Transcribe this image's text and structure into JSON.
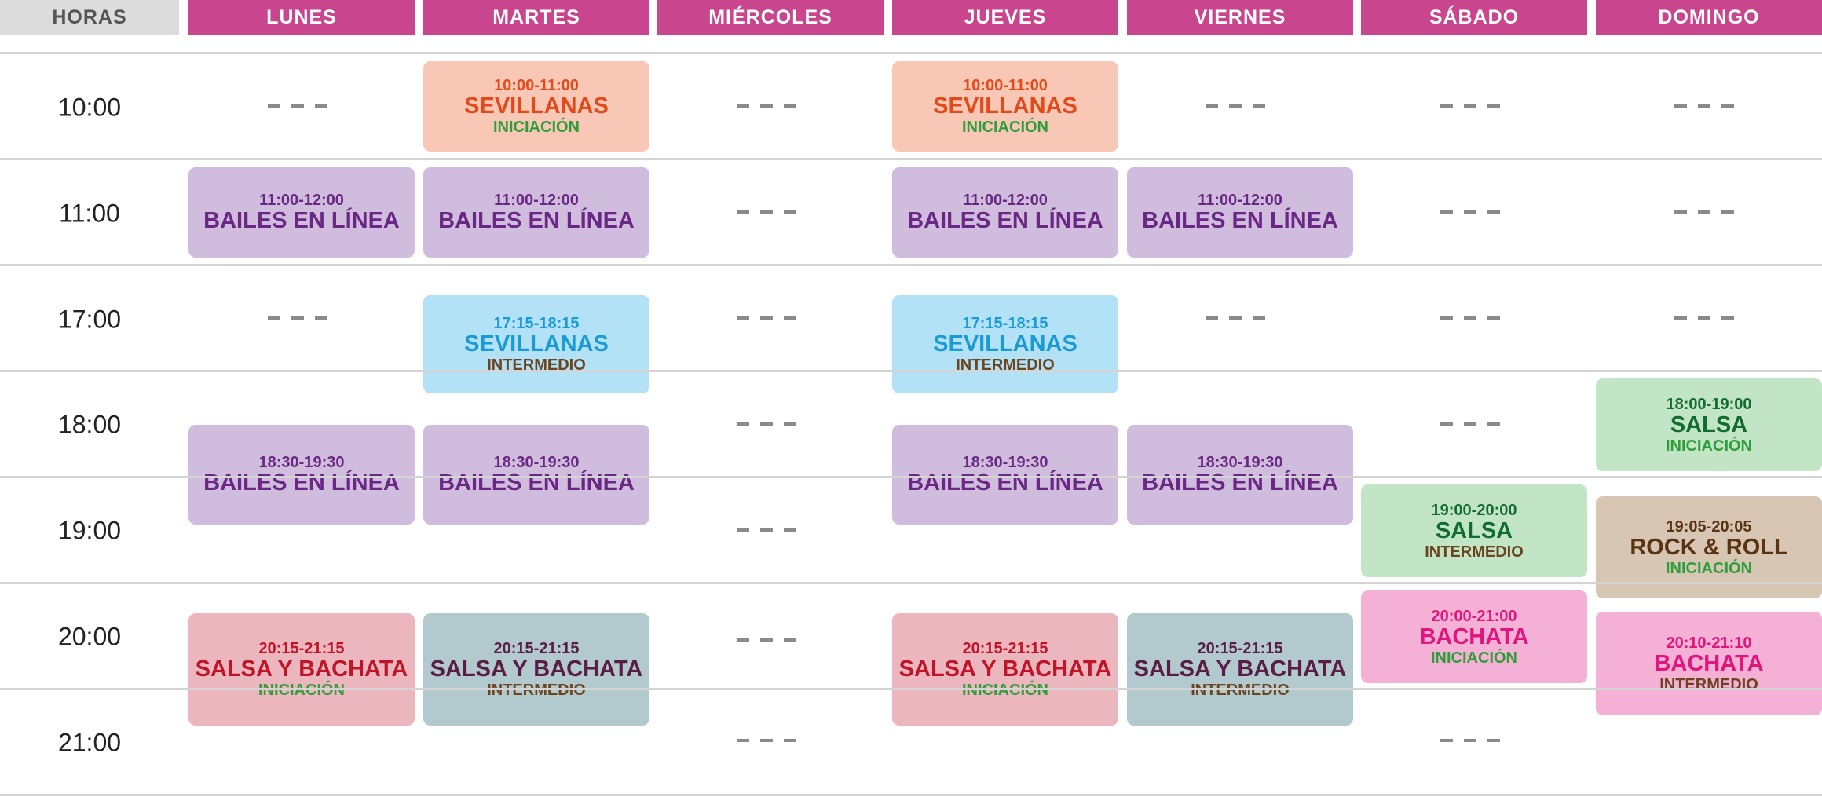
{
  "header": {
    "hours_label": "HORAS",
    "days": [
      "LUNES",
      "MARTES",
      "MIÉRCOLES",
      "JUEVES",
      "VIERNES",
      "SÁBADO",
      "DOMINGO"
    ]
  },
  "hours": [
    "10:00",
    "11:00",
    "17:00",
    "18:00",
    "19:00",
    "20:00",
    "21:00"
  ],
  "colors": {
    "header_day_bg": "#c9468f",
    "header_hours_bg": "#dcdcdc",
    "peach": "#f8c7b6",
    "lavender": "#d0bcdc",
    "sky": "#b3e1f6",
    "mint": "#c2e5c6",
    "rose": "#ebb6bd",
    "slate": "#b2c9cd",
    "pink": "#f5b1d5",
    "tan": "#d8c6b5"
  },
  "empty_slot_text": "– – –",
  "classes": [
    {
      "time": "10:00-11:00",
      "dance": "SEVILLANAS",
      "level": "INICIACIÓN"
    },
    {
      "time": "10:00-11:00",
      "dance": "SEVILLANAS",
      "level": "INICIACIÓN"
    },
    {
      "time": "11:00-12:00",
      "dance": "BAILES EN LÍNEA",
      "level": ""
    },
    {
      "time": "11:00-12:00",
      "dance": "BAILES EN LÍNEA",
      "level": ""
    },
    {
      "time": "11:00-12:00",
      "dance": "BAILES EN LÍNEA",
      "level": ""
    },
    {
      "time": "11:00-12:00",
      "dance": "BAILES EN LÍNEA",
      "level": ""
    },
    {
      "time": "17:15-18:15",
      "dance": "SEVILLANAS",
      "level": "INTERMEDIO"
    },
    {
      "time": "17:15-18:15",
      "dance": "SEVILLANAS",
      "level": "INTERMEDIO"
    },
    {
      "time": "18:30-19:30",
      "dance": "BAILES EN LÍNEA",
      "level": ""
    },
    {
      "time": "18:30-19:30",
      "dance": "BAILES EN LÍNEA",
      "level": ""
    },
    {
      "time": "18:30-19:30",
      "dance": "BAILES EN LÍNEA",
      "level": ""
    },
    {
      "time": "18:30-19:30",
      "dance": "BAILES EN LÍNEA",
      "level": ""
    },
    {
      "time": "18:00-19:00",
      "dance": "SALSA",
      "level": "INICIACIÓN"
    },
    {
      "time": "19:00-20:00",
      "dance": "SALSA",
      "level": "INTERMEDIO"
    },
    {
      "time": "19:05-20:05",
      "dance": "ROCK & ROLL",
      "level": "INICIACIÓN"
    },
    {
      "time": "20:00-21:00",
      "dance": "BACHATA",
      "level": "INICIACIÓN"
    },
    {
      "time": "20:10-21:10",
      "dance": "BACHATA",
      "level": "INTERMEDIO"
    },
    {
      "time": "20:15-21:15",
      "dance": "SALSA Y BACHATA",
      "level": "INICIACIÓN"
    },
    {
      "time": "20:15-21:15",
      "dance": "SALSA Y BACHATA",
      "level": "INTERMEDIO"
    },
    {
      "time": "20:15-21:15",
      "dance": "SALSA Y BACHATA",
      "level": "INICIACIÓN"
    },
    {
      "time": "20:15-21:15",
      "dance": "SALSA Y BACHATA",
      "level": "INTERMEDIO"
    }
  ]
}
